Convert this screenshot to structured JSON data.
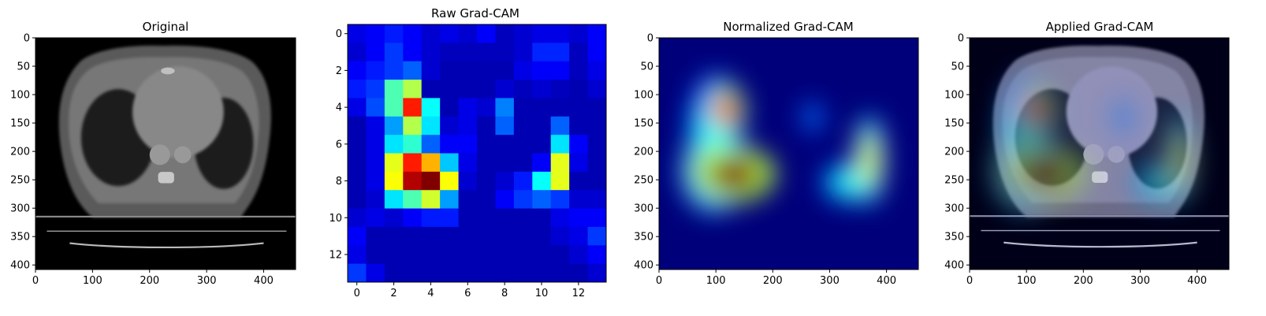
{
  "panels": [
    {
      "title": "Original",
      "kind": "ct_image",
      "xlim": [
        0,
        456
      ],
      "ylim": [
        0,
        408
      ],
      "xticks": [
        0,
        100,
        200,
        300,
        400
      ],
      "yticks": [
        0,
        50,
        100,
        150,
        200,
        250,
        300,
        350,
        400
      ]
    },
    {
      "title": "Raw Grad-CAM",
      "kind": "heatmap_grid",
      "xlim": [
        -0.5,
        13.5
      ],
      "ylim": [
        -0.5,
        13.5
      ],
      "xticks": [
        0,
        2,
        4,
        6,
        8,
        10,
        12
      ],
      "yticks": [
        0,
        2,
        4,
        6,
        8,
        10,
        12
      ]
    },
    {
      "title": "Normalized Grad-CAM",
      "kind": "smooth_heatmap",
      "xlim": [
        0,
        456
      ],
      "ylim": [
        0,
        408
      ],
      "xticks": [
        0,
        100,
        200,
        300,
        400
      ],
      "yticks": [
        0,
        50,
        100,
        150,
        200,
        250,
        300,
        350,
        400
      ]
    },
    {
      "title": "Applied Grad-CAM",
      "kind": "overlay",
      "xlim": [
        0,
        456
      ],
      "ylim": [
        0,
        408
      ],
      "xticks": [
        0,
        100,
        200,
        300,
        400
      ],
      "yticks": [
        0,
        50,
        100,
        150,
        200,
        250,
        300,
        350,
        400
      ]
    }
  ],
  "chart_data": {
    "type": "heatmap",
    "title": "Raw Grad-CAM",
    "colormap": "jet",
    "rows": 14,
    "cols": 14,
    "values": [
      [
        0.1,
        0.12,
        0.15,
        0.12,
        0.08,
        0.1,
        0.08,
        0.12,
        0.06,
        0.08,
        0.1,
        0.1,
        0.08,
        0.12
      ],
      [
        0.08,
        0.12,
        0.18,
        0.12,
        0.08,
        0.06,
        0.06,
        0.06,
        0.06,
        0.08,
        0.16,
        0.16,
        0.06,
        0.12
      ],
      [
        0.12,
        0.15,
        0.18,
        0.22,
        0.08,
        0.05,
        0.05,
        0.05,
        0.05,
        0.1,
        0.12,
        0.12,
        0.06,
        0.1
      ],
      [
        0.15,
        0.18,
        0.45,
        0.55,
        0.05,
        0.05,
        0.05,
        0.05,
        0.08,
        0.06,
        0.08,
        0.06,
        0.05,
        0.08
      ],
      [
        0.1,
        0.2,
        0.45,
        0.85,
        0.38,
        0.05,
        0.1,
        0.08,
        0.25,
        0.05,
        0.05,
        0.05,
        0.05,
        0.05
      ],
      [
        0.05,
        0.1,
        0.28,
        0.55,
        0.35,
        0.08,
        0.1,
        0.05,
        0.22,
        0.05,
        0.05,
        0.22,
        0.05,
        0.05
      ],
      [
        0.05,
        0.1,
        0.35,
        0.42,
        0.22,
        0.12,
        0.12,
        0.05,
        0.05,
        0.05,
        0.05,
        0.35,
        0.12,
        0.05
      ],
      [
        0.05,
        0.1,
        0.6,
        0.85,
        0.7,
        0.32,
        0.1,
        0.05,
        0.05,
        0.05,
        0.12,
        0.6,
        0.1,
        0.05
      ],
      [
        0.05,
        0.1,
        0.62,
        0.95,
        1.0,
        0.62,
        0.08,
        0.05,
        0.08,
        0.15,
        0.38,
        0.6,
        0.05,
        0.05
      ],
      [
        0.05,
        0.08,
        0.35,
        0.45,
        0.58,
        0.28,
        0.05,
        0.05,
        0.12,
        0.18,
        0.22,
        0.18,
        0.08,
        0.08
      ],
      [
        0.08,
        0.1,
        0.08,
        0.12,
        0.15,
        0.15,
        0.05,
        0.05,
        0.05,
        0.05,
        0.05,
        0.1,
        0.12,
        0.12
      ],
      [
        0.12,
        0.05,
        0.05,
        0.05,
        0.05,
        0.05,
        0.05,
        0.05,
        0.05,
        0.05,
        0.05,
        0.08,
        0.1,
        0.18
      ],
      [
        0.1,
        0.05,
        0.05,
        0.05,
        0.05,
        0.05,
        0.05,
        0.05,
        0.05,
        0.05,
        0.05,
        0.05,
        0.08,
        0.12
      ],
      [
        0.18,
        0.1,
        0.05,
        0.05,
        0.05,
        0.05,
        0.05,
        0.05,
        0.05,
        0.05,
        0.05,
        0.05,
        0.05,
        0.08
      ]
    ]
  },
  "normalized_hotspots": [
    {
      "x": 115,
      "y": 128,
      "sx": 22,
      "sy": 30,
      "v": 0.85
    },
    {
      "x": 98,
      "y": 160,
      "sx": 30,
      "sy": 60,
      "v": 0.38
    },
    {
      "x": 132,
      "y": 240,
      "sx": 45,
      "sy": 30,
      "v": 1.0
    },
    {
      "x": 95,
      "y": 235,
      "sx": 35,
      "sy": 45,
      "v": 0.55
    },
    {
      "x": 370,
      "y": 215,
      "sx": 16,
      "sy": 48,
      "v": 0.6
    },
    {
      "x": 335,
      "y": 255,
      "sx": 30,
      "sy": 22,
      "v": 0.4
    },
    {
      "x": 270,
      "y": 140,
      "sx": 10,
      "sy": 18,
      "v": 0.28
    }
  ]
}
